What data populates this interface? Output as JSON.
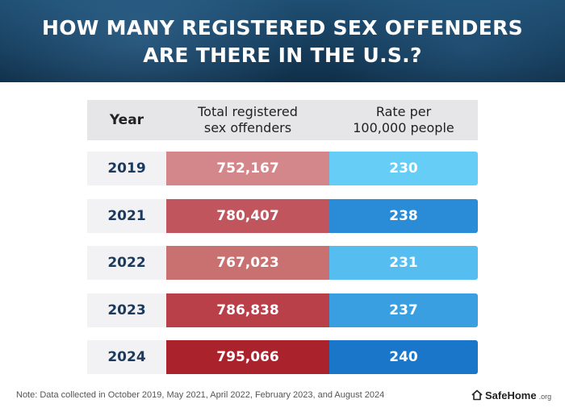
{
  "header": {
    "title_line1": "HOW MANY REGISTERED SEX OFFENDERS",
    "title_line2": "ARE THERE IN THE U.S.?"
  },
  "table": {
    "col_year": "Year",
    "col_total_line1": "Total registered",
    "col_total_line2": "sex offenders",
    "col_rate_line1": "Rate per",
    "col_rate_line2": "100,000 people"
  },
  "chart_data": {
    "type": "table",
    "title": "HOW MANY REGISTERED SEX OFFENDERS ARE THERE IN THE U.S.?",
    "columns": [
      "Year",
      "Total registered sex offenders",
      "Rate per 100,000 people"
    ],
    "rows": [
      {
        "year": "2019",
        "total": "752,167",
        "rate": "230",
        "total_value": 752167,
        "rate_value": 230
      },
      {
        "year": "2021",
        "total": "780,407",
        "rate": "238",
        "total_value": 780407,
        "rate_value": 238
      },
      {
        "year": "2022",
        "total": "767,023",
        "rate": "231",
        "total_value": 767023,
        "rate_value": 231
      },
      {
        "year": "2023",
        "total": "786,838",
        "rate": "237",
        "total_value": 786838,
        "rate_value": 237
      },
      {
        "year": "2024",
        "total": "795,066",
        "rate": "240",
        "total_value": 795066,
        "rate_value": 240
      }
    ],
    "total_colors": [
      "#d4878a",
      "#c0555d",
      "#c97070",
      "#b93f48",
      "#a9222c"
    ],
    "rate_colors": [
      "#66cdf6",
      "#2a8cd6",
      "#55bdef",
      "#3a9fe0",
      "#1a76c8"
    ]
  },
  "footer": {
    "note": "Note: Data collected in October 2019, May 2021, April 2022, February 2023, and August 2024",
    "brand_name": "SafeHome",
    "brand_tld": ".org",
    "brand_icon": "house-icon"
  }
}
